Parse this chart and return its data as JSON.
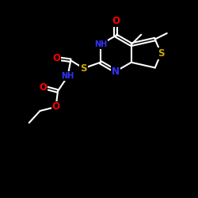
{
  "background": "#000000",
  "bond_color": "#ffffff",
  "bond_width": 1.5,
  "atom_colors": {
    "O": "#ff0000",
    "N": "#3333ff",
    "S": "#ccaa00",
    "C": "#ffffff"
  },
  "font_size_atom": 8.5,
  "font_size_small": 7.0
}
